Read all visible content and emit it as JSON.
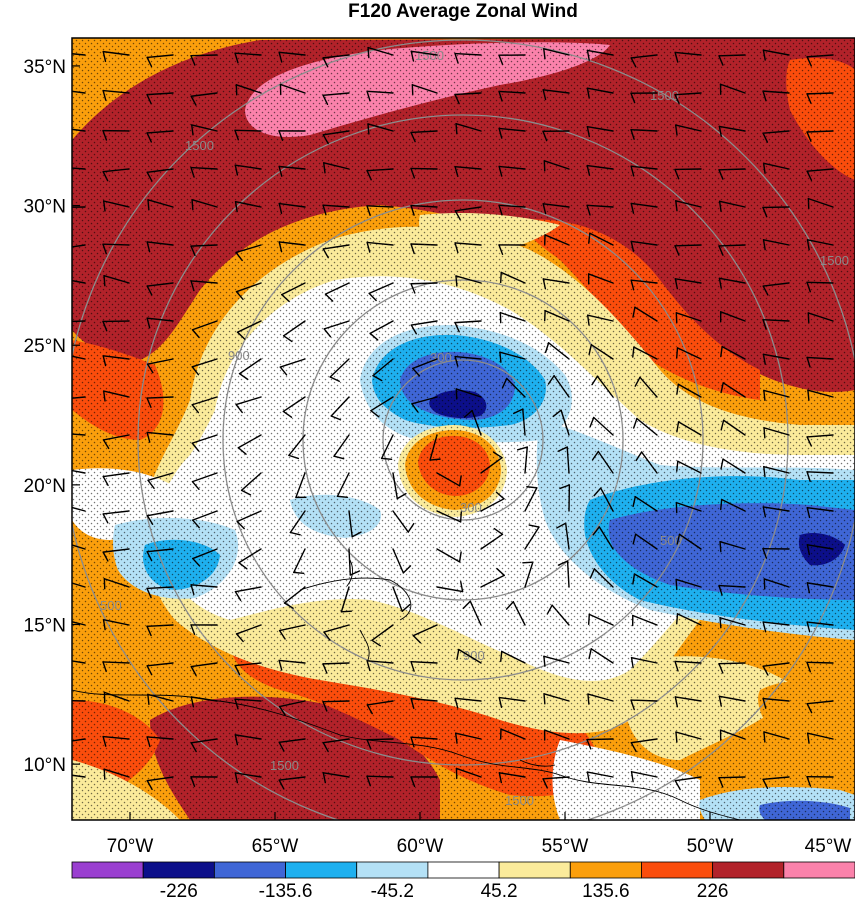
{
  "map": {
    "title": "F120 Average Zonal Wind",
    "lat_labels": [
      "35°N",
      "30°N",
      "25°N",
      "20°N",
      "15°N",
      "10°N"
    ],
    "lon_labels": [
      "70°W",
      "65°W",
      "60°W",
      "55°W",
      "50°W",
      "45°W"
    ],
    "lat_values": [
      35,
      30,
      25,
      20,
      15,
      10
    ],
    "lon_values": [
      -70,
      -65,
      -60,
      -55,
      -50,
      -45
    ],
    "lon_range": [
      -72,
      -45
    ],
    "lat_range": [
      8,
      36
    ],
    "range_ring_labels": [
      "300",
      "900",
      "1500",
      "1500",
      "1500",
      "1500",
      "900",
      "500",
      "500",
      "300",
      "1500",
      "1500"
    ],
    "colorbar": {
      "labels": [
        "-226",
        "-135.6",
        "-45.2",
        "45.2",
        "135.6",
        "226"
      ],
      "colors": [
        "#9a3fd0",
        "#0c0f8a",
        "#3f66d6",
        "#1eb0ef",
        "#b4e1f6",
        "#ffffff",
        "#fbeb9b",
        "#fb9f0c",
        "#fb4d0c",
        "#b2222a",
        "#fb82ab"
      ]
    },
    "fill_colors": {
      "dark_red": "#b2222a",
      "red_orange": "#fb4d0c",
      "orange": "#fb9f0c",
      "yellow": "#fbeb9b",
      "white": "#ffffff",
      "light_blue": "#b4e1f6",
      "cyan": "#1eb0ef",
      "blue": "#3f66d6",
      "navy": "#0c0f8a",
      "pink": "#fb82ab"
    }
  }
}
